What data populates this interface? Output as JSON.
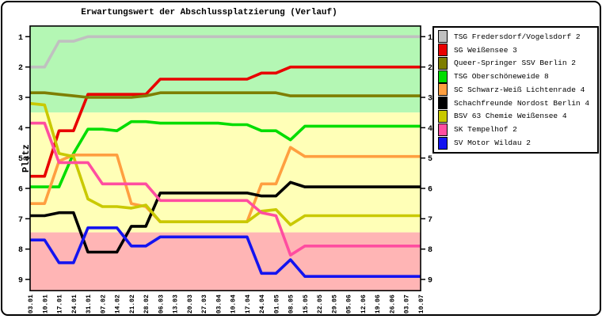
{
  "title": "Erwartungswert der Abschlussplatzierung (Verlauf)",
  "ylabel": "Platz",
  "chart_data": {
    "type": "line",
    "title": "Erwartungswert der Abschlussplatzierung (Verlauf)",
    "ylabel": "Platz",
    "xlabel": "",
    "x_labels": [
      "03.01",
      "10.01",
      "17.01",
      "24.01",
      "31.01",
      "07.02",
      "14.02",
      "21.02",
      "28.02",
      "06.03",
      "13.03",
      "20.03",
      "27.03",
      "03.04",
      "10.04",
      "17.04",
      "24.04",
      "01.05",
      "08.05",
      "15.05",
      "22.05",
      "29.05",
      "05.06",
      "12.06",
      "19.06",
      "26.06",
      "03.07",
      "10.07"
    ],
    "yticks": [
      1,
      2,
      3,
      4,
      5,
      6,
      7,
      8,
      9
    ],
    "ylim": [
      0.65,
      9.37
    ],
    "y_inverted": true,
    "grid": false,
    "legend_position": "right",
    "bands": [
      {
        "name": "top-places-band",
        "from": 0.65,
        "to": 3.5,
        "color": "#b4f7b4"
      },
      {
        "name": "middle-places-band",
        "from": 3.5,
        "to": 7.45,
        "color": "#ffffb7"
      },
      {
        "name": "bottom-places-band",
        "from": 7.45,
        "to": 9.37,
        "color": "#ffb5b5"
      }
    ],
    "series": [
      {
        "name": "TSG Fredersdorf/Vogelsdorf 2",
        "color": "#c0c0c0",
        "values": [
          2,
          2,
          1.15,
          1.15,
          1,
          1,
          1,
          1,
          1,
          1,
          1,
          1,
          1,
          1,
          1,
          1,
          1,
          1,
          1,
          1,
          1,
          1,
          1,
          1,
          1,
          1,
          1,
          1
        ]
      },
      {
        "name": "SG Weißensee 3",
        "color": "#e80000",
        "values": [
          5.6,
          5.6,
          4.1,
          4.1,
          2.9,
          2.9,
          2.9,
          2.9,
          2.9,
          2.4,
          2.4,
          2.4,
          2.4,
          2.4,
          2.4,
          2.4,
          2.2,
          2.2,
          2.0,
          2.0,
          2.0,
          2.0,
          2.0,
          2.0,
          2.0,
          2.0,
          2.0,
          2.0
        ]
      },
      {
        "name": "Queer-Springer SSV Berlin 2",
        "color": "#7e7e00",
        "values": [
          2.85,
          2.85,
          2.9,
          2.95,
          3.0,
          3.0,
          3.0,
          3.0,
          2.95,
          2.85,
          2.85,
          2.85,
          2.85,
          2.85,
          2.85,
          2.85,
          2.85,
          2.85,
          2.95,
          2.95,
          2.95,
          2.95,
          2.95,
          2.95,
          2.95,
          2.95,
          2.95,
          2.95
        ]
      },
      {
        "name": "TSG Oberschöneweide 8",
        "color": "#00dd00",
        "values": [
          5.95,
          5.95,
          5.95,
          4.85,
          4.05,
          4.05,
          4.1,
          3.8,
          3.8,
          3.85,
          3.85,
          3.85,
          3.85,
          3.85,
          3.9,
          3.9,
          4.1,
          4.1,
          4.4,
          3.95,
          3.95,
          3.95,
          3.95,
          3.95,
          3.95,
          3.95,
          3.95,
          3.95
        ]
      },
      {
        "name": "SC Schwarz-Weiß Lichtenrade 4",
        "color": "#ff9f40",
        "values": [
          6.5,
          6.5,
          5.1,
          4.9,
          4.9,
          4.9,
          4.9,
          6.5,
          6.6,
          7.1,
          7.1,
          7.1,
          7.1,
          7.1,
          7.1,
          7.1,
          5.85,
          5.85,
          4.65,
          4.95,
          4.95,
          4.95,
          4.95,
          4.95,
          4.95,
          4.95,
          4.95,
          4.95
        ]
      },
      {
        "name": "Schachfreunde Nordost Berlin 4",
        "color": "#000000",
        "values": [
          6.9,
          6.9,
          6.8,
          6.8,
          8.1,
          8.1,
          8.1,
          7.25,
          7.25,
          6.15,
          6.15,
          6.15,
          6.15,
          6.15,
          6.15,
          6.15,
          6.25,
          6.25,
          5.8,
          5.95,
          5.95,
          5.95,
          5.95,
          5.95,
          5.95,
          5.95,
          5.95,
          5.95
        ]
      },
      {
        "name": "BSV 63 Chemie Weißensee 4",
        "color": "#c9c900",
        "values": [
          3.2,
          3.25,
          4.85,
          4.95,
          6.35,
          6.6,
          6.6,
          6.65,
          6.55,
          7.1,
          7.1,
          7.1,
          7.1,
          7.1,
          7.1,
          7.1,
          6.75,
          6.7,
          7.2,
          6.9,
          6.9,
          6.9,
          6.9,
          6.9,
          6.9,
          6.9,
          6.9,
          6.9
        ]
      },
      {
        "name": "SK Tempelhof 2",
        "color": "#ff4da0",
        "values": [
          3.85,
          3.85,
          5.15,
          5.15,
          5.15,
          5.85,
          5.85,
          5.85,
          5.85,
          6.4,
          6.4,
          6.4,
          6.4,
          6.4,
          6.4,
          6.4,
          6.8,
          6.9,
          8.2,
          7.9,
          7.9,
          7.9,
          7.9,
          7.9,
          7.9,
          7.9,
          7.9,
          7.9
        ]
      },
      {
        "name": "SV Motor Wildau 2",
        "color": "#1414f0",
        "values": [
          7.7,
          7.7,
          8.45,
          8.45,
          7.3,
          7.3,
          7.3,
          7.9,
          7.9,
          7.6,
          7.6,
          7.6,
          7.6,
          7.6,
          7.6,
          7.6,
          8.8,
          8.8,
          8.35,
          8.9,
          8.9,
          8.9,
          8.9,
          8.9,
          8.9,
          8.9,
          8.9,
          8.9
        ]
      }
    ]
  }
}
